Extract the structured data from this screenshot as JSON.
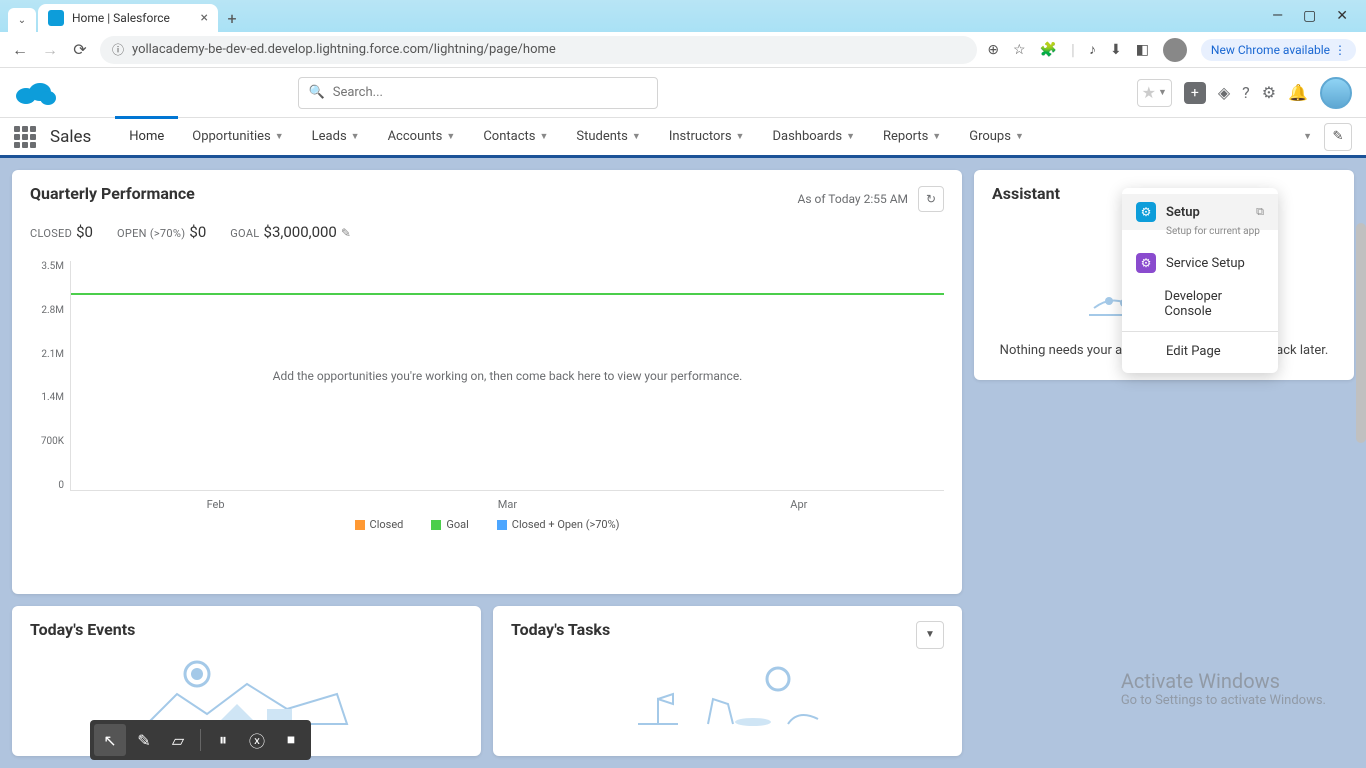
{
  "browser": {
    "tab_title": "Home | Salesforce",
    "url": "yollacademy-be-dev-ed.develop.lightning.force.com/lightning/page/home",
    "update_label": "New Chrome available"
  },
  "search": {
    "placeholder": "Search..."
  },
  "app_name": "Sales",
  "nav": {
    "items": [
      "Home",
      "Opportunities",
      "Leads",
      "Accounts",
      "Contacts",
      "Students",
      "Instructors",
      "Dashboards",
      "Reports",
      "Groups"
    ],
    "active_index": 0
  },
  "setup_menu": {
    "items": [
      {
        "label": "Setup",
        "sub": "Setup for current app",
        "icon_bg": "#0d9dda"
      },
      {
        "label": "Service Setup",
        "icon_bg": "#8a4bce"
      },
      {
        "label": "Developer Console"
      },
      {
        "label": "Edit Page"
      }
    ]
  },
  "perf": {
    "title": "Quarterly Performance",
    "as_of": "As of Today 2:55 AM",
    "closed_label": "CLOSED",
    "closed_value": "$0",
    "open_label": "OPEN (>70%)",
    "open_value": "$0",
    "goal_label": "GOAL",
    "goal_value": "$3,000,000",
    "empty_msg": "Add the opportunities you're working on, then come back here to view your performance.",
    "chart": {
      "type": "line",
      "y_ticks": [
        "3.5M",
        "2.8M",
        "2.1M",
        "1.4M",
        "700K",
        "0"
      ],
      "x_ticks": [
        "Feb",
        "Mar",
        "Apr"
      ],
      "ylim": [
        0,
        3500000
      ],
      "goal_value_num": 3000000,
      "goal_line_pct_from_top": 14,
      "legend": [
        {
          "label": "Closed",
          "color": "#ff9933"
        },
        {
          "label": "Goal",
          "color": "#4bce4b"
        },
        {
          "label": "Closed + Open (>70%)",
          "color": "#4da6ff"
        }
      ],
      "background_color": "#ffffff",
      "grid_color": "#e0e0e0",
      "tick_fontsize": 10,
      "label_fontsize": 11
    }
  },
  "events": {
    "title": "Today's Events"
  },
  "tasks": {
    "title": "Today's Tasks"
  },
  "assistant": {
    "title": "Assistant",
    "message": "Nothing needs your attention right now. Check back later."
  },
  "watermark": {
    "line1": "Activate Windows",
    "line2": "Go to Settings to activate Windows."
  },
  "colors": {
    "nav_border": "#1b5297",
    "active_tab": "#0176d3",
    "body_bg": "#b0c4de"
  }
}
